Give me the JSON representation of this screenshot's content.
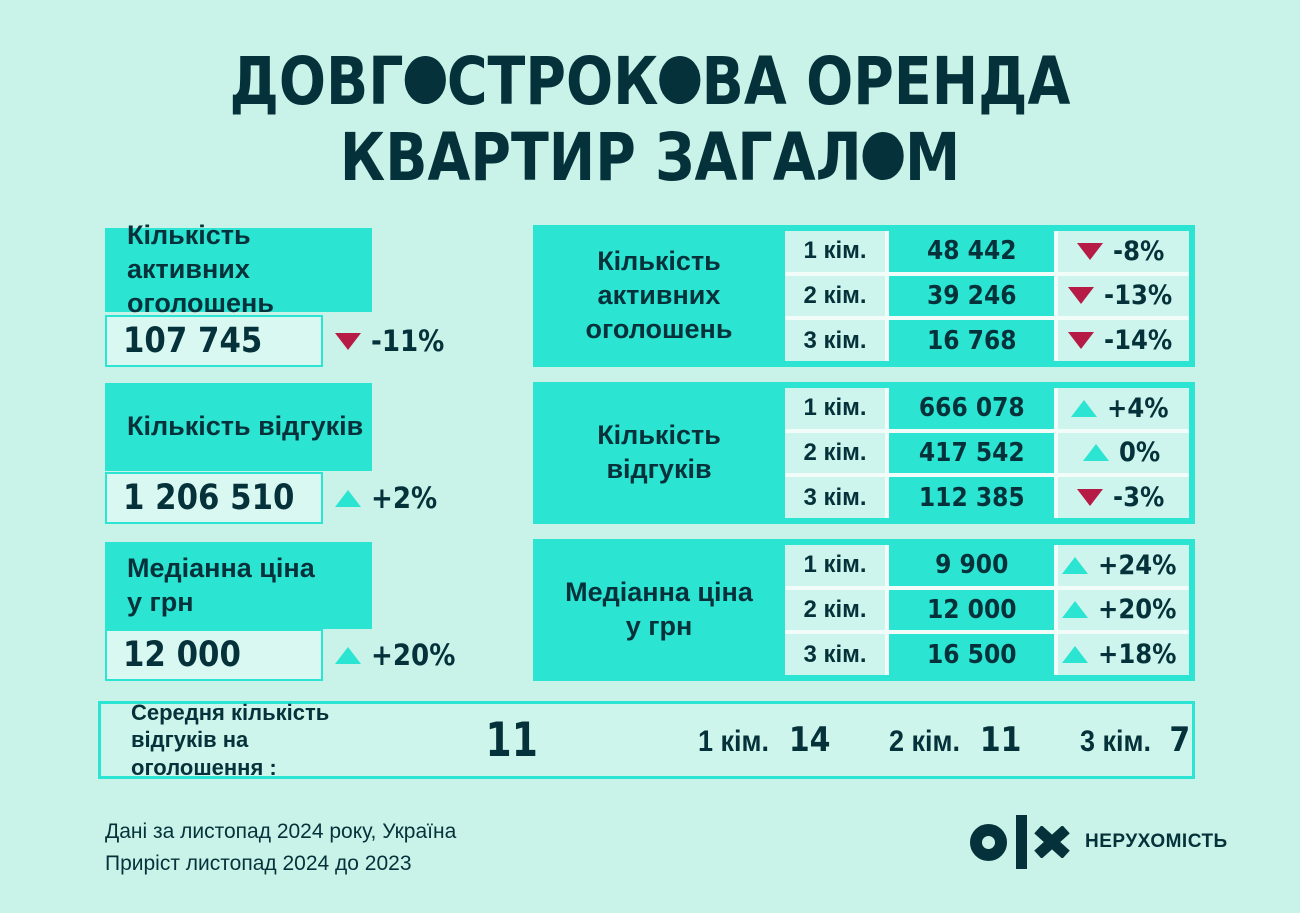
{
  "title": {
    "line1_segments": [
      {
        "t": "ДОВГ"
      },
      {
        "t": "О",
        "solid": true
      },
      {
        "t": "СТРОК"
      },
      {
        "t": "О",
        "solid": true
      },
      {
        "t": "ВА ОРЕНДА"
      }
    ],
    "line2_segments": [
      {
        "t": "КВАРТИР ЗАГАЛ"
      },
      {
        "t": "О",
        "solid": true
      },
      {
        "t": "М"
      }
    ],
    "plain": "ДОВГОСТРОКОВА ОРЕНДА КВАРТИР ЗАГАЛОМ"
  },
  "colors": {
    "background": "#c9f3e9",
    "accent_teal": "#2be4d2",
    "dark_text": "#05323a",
    "negative_red": "#b51b45",
    "positive_teal": "#2be4d2"
  },
  "summary_cards": [
    {
      "label": "Кількість активних\nоголошень",
      "value": "107 745",
      "direction": "down",
      "change": "-11%"
    },
    {
      "label": "Кількість відгуків",
      "value": "1 206 510",
      "direction": "up",
      "change": "+2%"
    },
    {
      "label": "Медіанна ціна\nу грн",
      "value": "12 000",
      "direction": "up",
      "change": "+20%"
    }
  ],
  "tables": [
    {
      "label": "Кількість\nактивних\nоголошень",
      "rows": [
        {
          "room": "1 кім.",
          "value": "48 442",
          "direction": "down",
          "change": "-8%"
        },
        {
          "room": "2 кім.",
          "value": "39 246",
          "direction": "down",
          "change": "-13%"
        },
        {
          "room": "3 кім.",
          "value": "16 768",
          "direction": "down",
          "change": "-14%"
        }
      ]
    },
    {
      "label": "Кількість\nвідгуків",
      "rows": [
        {
          "room": "1 кім.",
          "value": "666 078",
          "direction": "up",
          "change": "+4%"
        },
        {
          "room": "2 кім.",
          "value": "417 542",
          "direction": "up",
          "change": "0%"
        },
        {
          "room": "3 кім.",
          "value": "112 385",
          "direction": "down",
          "change": "-3%"
        }
      ]
    },
    {
      "label": "Медіанна ціна\nу грн",
      "rows": [
        {
          "room": "1 кім.",
          "value": "9 900",
          "direction": "up",
          "change": "+24%"
        },
        {
          "room": "2 кім.",
          "value": "12 000",
          "direction": "up",
          "change": "+20%"
        },
        {
          "room": "3 кім.",
          "value": "16 500",
          "direction": "up",
          "change": "+18%"
        }
      ]
    }
  ],
  "avg_bar": {
    "label": "Середня кількість\nвідгуків на оголошення :",
    "total": "11",
    "items": [
      {
        "room": "1 кім.",
        "value": "14"
      },
      {
        "room": "2 кім.",
        "value": "11"
      },
      {
        "room": "3 кім.",
        "value": "7"
      }
    ]
  },
  "footer": {
    "notes": "Дані за листопад 2024 року, Україна\nПриріст листопад 2024 до 2023",
    "brand": "НЕРУХОМІСТЬ"
  },
  "chart_data": {
    "type": "table",
    "title": "Довгострокова оренда квартир загалом",
    "period_note": "Дані за листопад 2024 року, Україна",
    "growth_note": "Приріст листопад 2024 до 2023",
    "overall": {
      "active_listings": {
        "value": 107745,
        "change_pct": -11
      },
      "responses": {
        "value": 1206510,
        "change_pct": 2
      },
      "median_price_uah": {
        "value": 12000,
        "change_pct": 20
      }
    },
    "by_rooms": {
      "categories": [
        "1 кім.",
        "2 кім.",
        "3 кім."
      ],
      "active_listings": {
        "values": [
          48442,
          39246,
          16768
        ],
        "change_pct": [
          -8,
          -13,
          -14
        ]
      },
      "responses": {
        "values": [
          666078,
          417542,
          112385
        ],
        "change_pct": [
          4,
          0,
          -3
        ]
      },
      "median_price_uah": {
        "values": [
          9900,
          12000,
          16500
        ],
        "change_pct": [
          24,
          20,
          18
        ]
      }
    },
    "avg_responses_per_listing": {
      "overall": 11,
      "by_rooms": [
        14,
        11,
        7
      ]
    }
  }
}
